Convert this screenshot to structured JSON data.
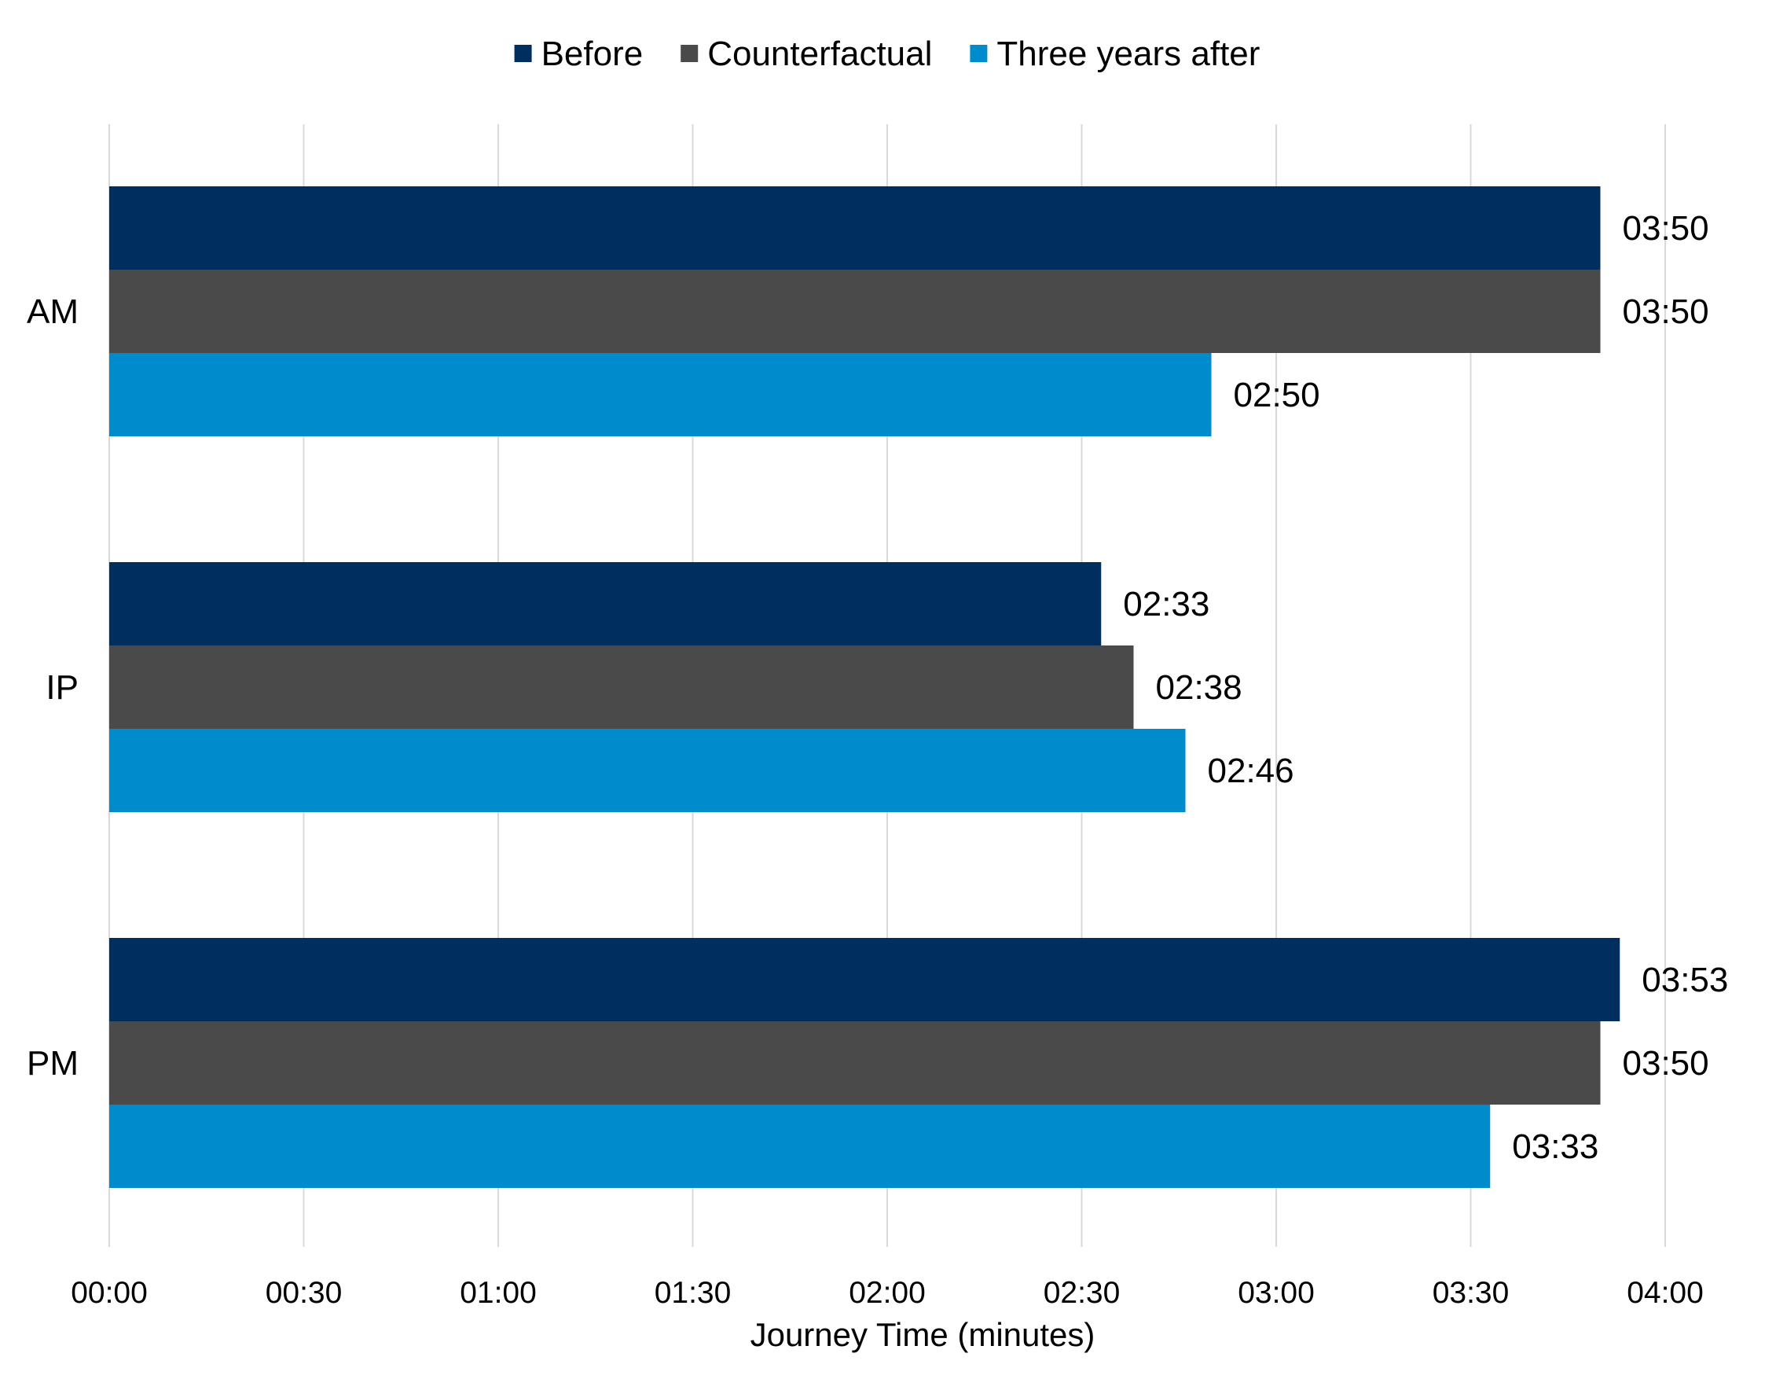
{
  "chart_data": {
    "type": "bar",
    "orientation": "horizontal",
    "categories": [
      "AM",
      "IP",
      "PM"
    ],
    "series": [
      {
        "name": "Before",
        "color": "#002f5f",
        "values_seconds": [
          230,
          153,
          233
        ],
        "labels": [
          "03:50",
          "02:33",
          "03:53"
        ]
      },
      {
        "name": "Counterfactual",
        "color": "#4a4a4a",
        "values_seconds": [
          230,
          158,
          230
        ],
        "labels": [
          "03:50",
          "02:38",
          "03:50"
        ]
      },
      {
        "name": "Three years after",
        "color": "#008ccc",
        "values_seconds": [
          170,
          166,
          213
        ],
        "labels": [
          "02:50",
          "02:46",
          "03:33"
        ]
      }
    ],
    "x_ticks_seconds": [
      0,
      30,
      60,
      90,
      120,
      150,
      180,
      210,
      240
    ],
    "x_tick_labels": [
      "00:00",
      "00:30",
      "01:00",
      "01:30",
      "02:00",
      "02:30",
      "03:00",
      "03:30",
      "04:00"
    ],
    "xlim_seconds": [
      0,
      240
    ],
    "xlabel": "Journey Time (minutes)",
    "legend_position": "top-center",
    "grid": "vertical"
  }
}
